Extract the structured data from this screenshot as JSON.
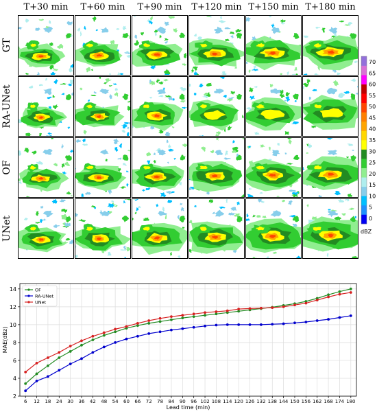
{
  "radar_grid": {
    "column_titles": [
      "T+30 min",
      "T+60 min",
      "T+90 min",
      "T+120 min",
      "T+150 min",
      "T+180 min"
    ],
    "row_labels": [
      "GT",
      "RA-UNet",
      "OF",
      "UNet"
    ],
    "colorbar": {
      "unit": "dBZ",
      "ticks": [
        "0",
        "5",
        "10",
        "15",
        "20",
        "25",
        "30",
        "35",
        "40",
        "45",
        "50",
        "55",
        "60",
        "65",
        "70"
      ],
      "colors": [
        "#0000f5",
        "#1e90ff",
        "#00bfff",
        "#87ceeb",
        "#afeeee",
        "#90ee90",
        "#32cd32",
        "#228b22",
        "#ffff00",
        "#ffd700",
        "#ffa500",
        "#ff7f00",
        "#ff4500",
        "#ff0000",
        "#c00000",
        "#ff00ff",
        "#da70d6",
        "#9370db"
      ]
    }
  },
  "chart_data": {
    "type": "line",
    "xlabel": "Lead time (min)",
    "ylabel": "MAE(dBz)",
    "ylim": [
      2,
      14.6
    ],
    "yticks": [
      2,
      4,
      6,
      8,
      10,
      12,
      14
    ],
    "grid": true,
    "legend": "top-left",
    "x": [
      6,
      12,
      18,
      24,
      30,
      36,
      42,
      48,
      54,
      60,
      66,
      72,
      78,
      84,
      90,
      96,
      102,
      108,
      114,
      120,
      126,
      132,
      138,
      144,
      150,
      156,
      162,
      168,
      174,
      180
    ],
    "series": [
      {
        "name": "OF",
        "color": "#228b22",
        "values": [
          3.4,
          4.5,
          5.4,
          6.3,
          7.0,
          7.7,
          8.3,
          8.8,
          9.2,
          9.6,
          9.9,
          10.15,
          10.35,
          10.55,
          10.75,
          10.9,
          11.05,
          11.2,
          11.35,
          11.5,
          11.65,
          11.8,
          11.95,
          12.15,
          12.35,
          12.6,
          12.95,
          13.35,
          13.7,
          14.0
        ]
      },
      {
        "name": "RA-UNet",
        "color": "#0000cd",
        "values": [
          2.6,
          3.7,
          4.2,
          4.9,
          5.6,
          6.2,
          6.9,
          7.5,
          8.0,
          8.4,
          8.7,
          9.0,
          9.2,
          9.4,
          9.55,
          9.7,
          9.85,
          9.95,
          10.0,
          10.0,
          10.0,
          10.0,
          10.05,
          10.1,
          10.2,
          10.3,
          10.45,
          10.6,
          10.8,
          11.0
        ]
      },
      {
        "name": "UNet",
        "color": "#d62020",
        "values": [
          4.7,
          5.7,
          6.3,
          6.9,
          7.6,
          8.2,
          8.7,
          9.1,
          9.5,
          9.8,
          10.15,
          10.45,
          10.7,
          10.9,
          11.05,
          11.2,
          11.35,
          11.45,
          11.55,
          11.75,
          11.8,
          11.85,
          11.9,
          12.0,
          12.2,
          12.4,
          12.75,
          13.1,
          13.4,
          13.6
        ]
      }
    ]
  }
}
